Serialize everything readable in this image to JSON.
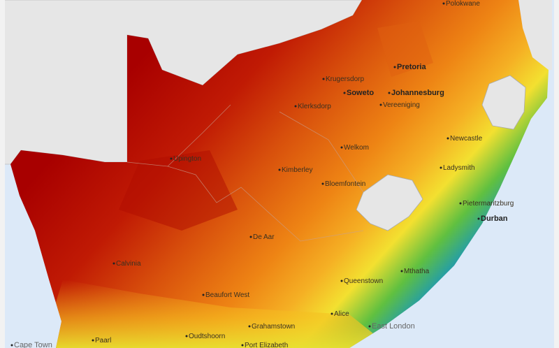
{
  "map": {
    "colors": {
      "sea": "#dce9f8",
      "neighbour": "#e6e6e6",
      "highest": "#a80000",
      "high": "#d8480c",
      "mid": "#f08c14",
      "lowmid": "#f5e030",
      "low": "#50c040",
      "lowest": "#1f5fb8"
    },
    "cities": [
      {
        "name": "Polokwane"
      },
      {
        "name": "Pretoria"
      },
      {
        "name": "Krugersdorp"
      },
      {
        "name": "Soweto"
      },
      {
        "name": "Johannesburg"
      },
      {
        "name": "Vereeniging"
      },
      {
        "name": "Klerksdorp"
      },
      {
        "name": "Welkom"
      },
      {
        "name": "Newcastle"
      },
      {
        "name": "Ladysmith"
      },
      {
        "name": "Upington"
      },
      {
        "name": "Kimberley"
      },
      {
        "name": "Bloemfontein"
      },
      {
        "name": "Pietermaritzburg"
      },
      {
        "name": "Durban"
      },
      {
        "name": "De Aar"
      },
      {
        "name": "Calvinia"
      },
      {
        "name": "Mthatha"
      },
      {
        "name": "Queenstown"
      },
      {
        "name": "Beaufort West"
      },
      {
        "name": "Alice"
      },
      {
        "name": "East London"
      },
      {
        "name": "Grahamstown"
      },
      {
        "name": "Oudtshoorn"
      },
      {
        "name": "Paarl"
      },
      {
        "name": "Cape Town"
      },
      {
        "name": "Port Elizabeth"
      }
    ]
  }
}
